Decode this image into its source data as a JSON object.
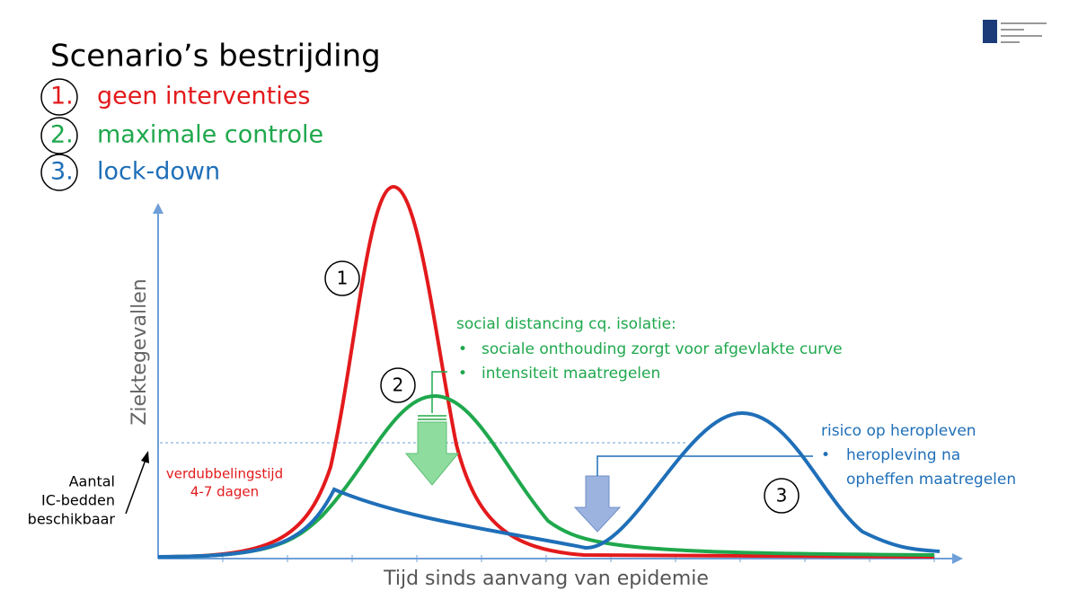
{
  "title": "Scenario’s bestrijding",
  "scenarios": [
    {
      "number": "1.",
      "label": "geen interventies"
    },
    {
      "number": "2.",
      "label": "maximale controle"
    },
    {
      "number": "3.",
      "label": "lock-down"
    }
  ],
  "axes": {
    "y_label": "Ziektegevallen",
    "x_label": "Tijd sinds aanvang van epidemie"
  },
  "ic_capacity_label": [
    "Aantal",
    "IC-bedden",
    "beschikbaar"
  ],
  "doubling_time": [
    "verdubbelingstijd",
    "4-7 dagen"
  ],
  "curve_markers": [
    "1",
    "2",
    "3"
  ],
  "social_distancing": {
    "heading": "social distancing cq. isolatie:",
    "bullets": [
      "sociale onthouding zorgt voor afgevlakte curve",
      "intensiteit maatregelen"
    ]
  },
  "resurgence": {
    "heading": "risico op heropleven",
    "bullets": [
      [
        "heropleving na",
        "opheffen maatregelen"
      ]
    ]
  }
}
